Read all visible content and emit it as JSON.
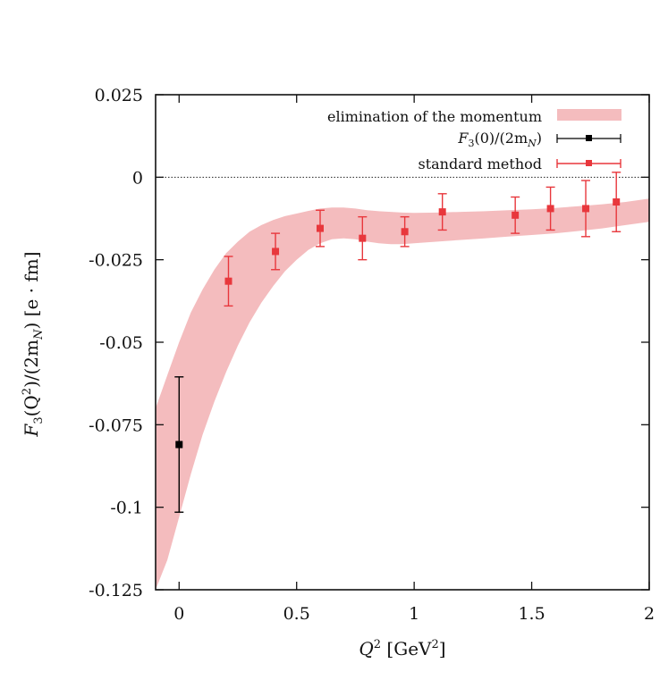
{
  "chart_data": {
    "type": "scatter",
    "title": "",
    "xlabel_main": "Q",
    "xlabel_sup": "2",
    "xlabel_unit_pre": " [GeV",
    "xlabel_unit_sup": "2",
    "xlabel_unit_post": "]",
    "ylabel_main": "F",
    "ylabel_sub": "3",
    "ylabel_mid1": "(Q",
    "ylabel_sup": "2",
    "ylabel_mid2": ")/(2m",
    "ylabel_sub2": "N",
    "ylabel_mid3": ") [e · fm]",
    "xlim": [
      -0.1,
      2.0
    ],
    "ylim": [
      -0.125,
      0.025
    ],
    "xticks": [
      "0",
      "0.5",
      "1",
      "1.5",
      "2"
    ],
    "xtick_values": [
      0,
      0.5,
      1,
      1.5,
      2
    ],
    "yticks": [
      "0.025",
      "0",
      "-0.025",
      "-0.05",
      "-0.075",
      "-0.1",
      "-0.125"
    ],
    "ytick_values": [
      0.025,
      0,
      -0.025,
      -0.05,
      -0.075,
      -0.1,
      -0.125
    ],
    "grid": false,
    "zero_line": true,
    "legend_position": "top-right",
    "series": [
      {
        "name": "elimination of the momentum",
        "kind": "band",
        "color": "#f3b7b9",
        "x": [
          -0.1,
          -0.05,
          0.0,
          0.05,
          0.1,
          0.15,
          0.2,
          0.25,
          0.3,
          0.35,
          0.4,
          0.45,
          0.5,
          0.55,
          0.6,
          0.65,
          0.7,
          0.75,
          0.8,
          0.85,
          0.9,
          0.95,
          1.0,
          1.1,
          1.2,
          1.3,
          1.4,
          1.5,
          1.6,
          1.7,
          1.8,
          1.9,
          2.0
        ],
        "upper": [
          -0.07,
          -0.06,
          -0.05,
          -0.041,
          -0.034,
          -0.028,
          -0.023,
          -0.0195,
          -0.0165,
          -0.0145,
          -0.013,
          -0.0118,
          -0.011,
          -0.0102,
          -0.0095,
          -0.0092,
          -0.0092,
          -0.0095,
          -0.01,
          -0.0103,
          -0.0105,
          -0.0107,
          -0.0108,
          -0.0107,
          -0.0105,
          -0.0103,
          -0.01,
          -0.0097,
          -0.0093,
          -0.0088,
          -0.0082,
          -0.0075,
          -0.0065
        ],
        "lower": [
          -0.13,
          -0.116,
          -0.103,
          -0.09,
          -0.078,
          -0.068,
          -0.059,
          -0.051,
          -0.044,
          -0.038,
          -0.033,
          -0.0285,
          -0.025,
          -0.022,
          -0.02,
          -0.0188,
          -0.0185,
          -0.0188,
          -0.0195,
          -0.02,
          -0.0203,
          -0.0203,
          -0.02,
          -0.0195,
          -0.019,
          -0.0185,
          -0.018,
          -0.0175,
          -0.017,
          -0.0163,
          -0.0155,
          -0.0145,
          -0.0135
        ]
      },
      {
        "name": "F_3(0)/(2m_N)",
        "kind": "points",
        "color": "#000000",
        "x": [
          0.0
        ],
        "y": [
          -0.081
        ],
        "yerr": [
          0.0205
        ]
      },
      {
        "name": "standard method",
        "kind": "points",
        "color": "#e8373c",
        "x": [
          0.21,
          0.41,
          0.6,
          0.78,
          0.96,
          1.12,
          1.43,
          1.58,
          1.73,
          1.86
        ],
        "y": [
          -0.0315,
          -0.0225,
          -0.0155,
          -0.0185,
          -0.0165,
          -0.0105,
          -0.0115,
          -0.0095,
          -0.0095,
          -0.0075
        ],
        "yerr": [
          0.0075,
          0.0055,
          0.0055,
          0.0065,
          0.0045,
          0.0055,
          0.0055,
          0.0065,
          0.0085,
          0.009
        ]
      }
    ],
    "legend": {
      "band_label": "elimination of the momentum",
      "black_label_main": "F",
      "black_label_sub": "3",
      "black_label_mid": "(0)/(2m",
      "black_label_sub2": "N",
      "black_label_end": ")",
      "red_label": "standard method"
    }
  }
}
